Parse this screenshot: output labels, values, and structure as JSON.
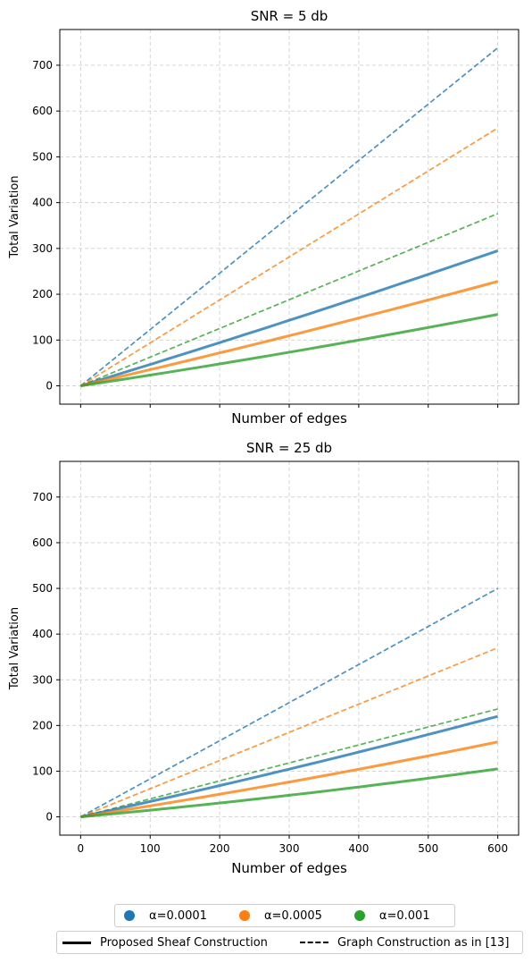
{
  "chart_data": [
    {
      "type": "line",
      "title": "SNR = 5 db",
      "xlabel": "Number of edges",
      "ylabel": "Total Variation",
      "xlim": [
        -30,
        630
      ],
      "ylim": [
        -40,
        778
      ],
      "xticks": [
        0,
        100,
        200,
        300,
        400,
        500,
        600
      ],
      "yticks": [
        0,
        100,
        200,
        300,
        400,
        500,
        600,
        700
      ],
      "show_x_tick_labels": false,
      "grid": true,
      "series": [
        {
          "name": "α=0.0001",
          "style": "solid",
          "color": "#1f77b4",
          "x": [
            0,
            600
          ],
          "y": [
            0,
            295
          ],
          "curve": 0.06
        },
        {
          "name": "α=0.0005",
          "style": "solid",
          "color": "#ff7f0e",
          "x": [
            0,
            600
          ],
          "y": [
            0,
            228
          ],
          "curve": 0.08
        },
        {
          "name": "α=0.001",
          "style": "solid",
          "color": "#2ca02c",
          "x": [
            0,
            600
          ],
          "y": [
            0,
            156
          ],
          "curve": 0.12
        },
        {
          "name": "α=0.0001",
          "style": "dashed",
          "color": "#1f77b4",
          "x": [
            0,
            600
          ],
          "y": [
            0,
            738
          ],
          "curve": 0
        },
        {
          "name": "α=0.0005",
          "style": "dashed",
          "color": "#ff7f0e",
          "x": [
            0,
            600
          ],
          "y": [
            0,
            563
          ],
          "curve": 0
        },
        {
          "name": "α=0.001",
          "style": "dashed",
          "color": "#2ca02c",
          "x": [
            0,
            600
          ],
          "y": [
            0,
            376
          ],
          "curve": 0
        }
      ]
    },
    {
      "type": "line",
      "title": "SNR = 25 db",
      "xlabel": "Number of edges",
      "ylabel": "Total Variation",
      "xlim": [
        -30,
        630
      ],
      "ylim": [
        -40,
        778
      ],
      "xticks": [
        0,
        100,
        200,
        300,
        400,
        500,
        600
      ],
      "yticks": [
        0,
        100,
        200,
        300,
        400,
        500,
        600,
        700
      ],
      "show_x_tick_labels": true,
      "grid": true,
      "series": [
        {
          "name": "α=0.0001",
          "style": "solid",
          "color": "#1f77b4",
          "x": [
            0,
            600
          ],
          "y": [
            0,
            220
          ],
          "curve": 0.1
        },
        {
          "name": "α=0.0005",
          "style": "solid",
          "color": "#ff7f0e",
          "x": [
            0,
            600
          ],
          "y": [
            0,
            164
          ],
          "curve": 0.14
        },
        {
          "name": "α=0.001",
          "style": "solid",
          "color": "#2ca02c",
          "x": [
            0,
            600
          ],
          "y": [
            0,
            105
          ],
          "curve": 0.2
        },
        {
          "name": "α=0.0001",
          "style": "dashed",
          "color": "#1f77b4",
          "x": [
            0,
            600
          ],
          "y": [
            0,
            500
          ],
          "curve": 0
        },
        {
          "name": "α=0.0005",
          "style": "dashed",
          "color": "#ff7f0e",
          "x": [
            0,
            600
          ],
          "y": [
            0,
            370
          ],
          "curve": 0
        },
        {
          "name": "α=0.001",
          "style": "dashed",
          "color": "#2ca02c",
          "x": [
            0,
            600
          ],
          "y": [
            0,
            236
          ],
          "curve": 0
        }
      ]
    }
  ],
  "legend": {
    "alpha_items": [
      {
        "label": "α=0.0001",
        "color": "#1f77b4"
      },
      {
        "label": "α=0.0005",
        "color": "#ff7f0e"
      },
      {
        "label": "α=0.001",
        "color": "#2ca02c"
      }
    ],
    "style_items": [
      {
        "label": "Proposed Sheaf Construction",
        "style": "solid"
      },
      {
        "label": "Graph Construction as in [13]",
        "style": "dashed"
      }
    ],
    "placement": "bottom-center"
  }
}
